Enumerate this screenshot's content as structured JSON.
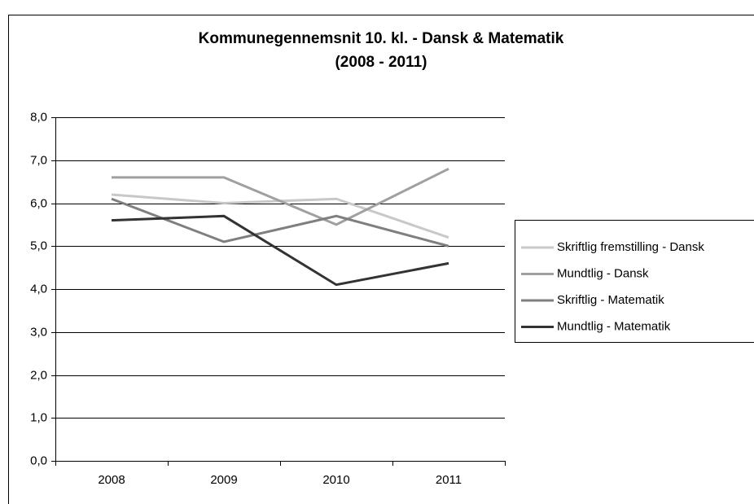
{
  "chart_data": {
    "type": "line",
    "title": "Kommunegennemsnit 10. kl. - Dansk & Matematik",
    "subtitle": "(2008 - 2011)",
    "categories": [
      "2008",
      "2009",
      "2010",
      "2011"
    ],
    "series": [
      {
        "name": "Skriftlig fremstilling - Dansk",
        "color": "#c8c8c8",
        "values": [
          6.2,
          6.0,
          6.1,
          5.2
        ]
      },
      {
        "name": "Mundtlig - Dansk",
        "color": "#a0a0a0",
        "values": [
          6.6,
          6.6,
          5.5,
          6.8
        ]
      },
      {
        "name": "Skriftlig - Matematik",
        "color": "#7f7f7f",
        "values": [
          6.1,
          5.1,
          5.7,
          5.0
        ]
      },
      {
        "name": "Mundtlig - Matematik",
        "color": "#333333",
        "values": [
          5.6,
          5.7,
          4.1,
          4.6
        ]
      }
    ],
    "ylim": [
      0,
      8
    ],
    "yticks": [
      {
        "value": 0,
        "label": "0,0"
      },
      {
        "value": 1,
        "label": "1,0"
      },
      {
        "value": 2,
        "label": "2,0"
      },
      {
        "value": 3,
        "label": "3,0"
      },
      {
        "value": 4,
        "label": "4,0"
      },
      {
        "value": 5,
        "label": "5,0"
      },
      {
        "value": 6,
        "label": "6,0"
      },
      {
        "value": 7,
        "label": "7,0"
      },
      {
        "value": 8,
        "label": "8,0"
      }
    ],
    "grid": true,
    "legend": "right"
  }
}
